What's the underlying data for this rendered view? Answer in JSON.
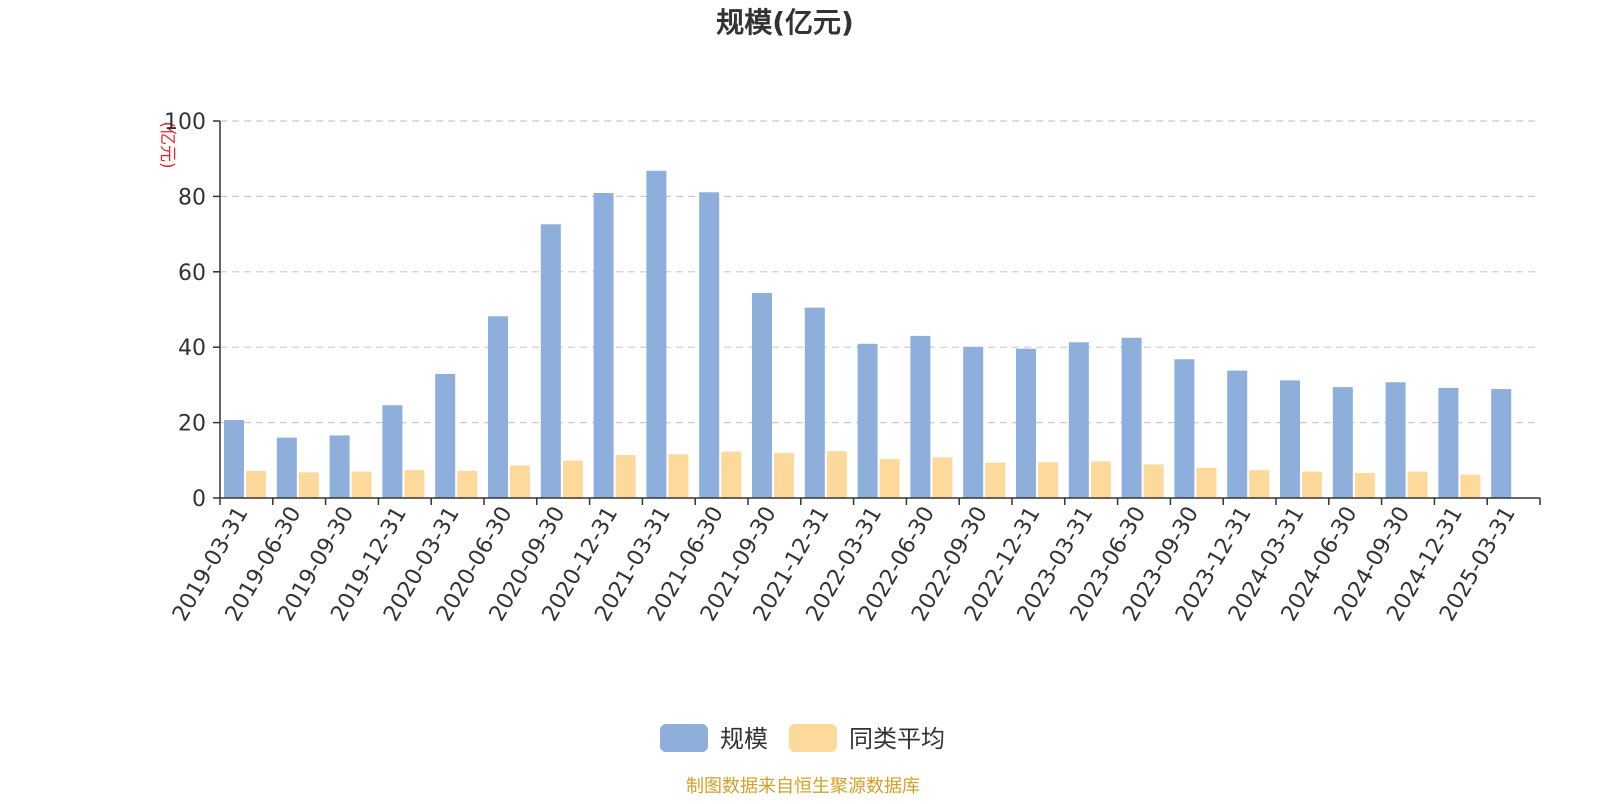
{
  "chart_data": {
    "type": "bar",
    "title": "规模(亿元)",
    "ylabel": "(亿元)",
    "xlabel": "",
    "ylim": [
      0,
      100
    ],
    "yticks": [
      0,
      20,
      40,
      60,
      80,
      100
    ],
    "grid": true,
    "legend_position": "bottom-center",
    "categories": [
      "2019-03-31",
      "2019-06-30",
      "2019-09-30",
      "2019-12-31",
      "2020-03-31",
      "2020-06-30",
      "2020-09-30",
      "2020-12-31",
      "2021-03-31",
      "2021-06-30",
      "2021-09-30",
      "2021-12-31",
      "2022-03-31",
      "2022-06-30",
      "2022-09-30",
      "2022-12-31",
      "2023-03-31",
      "2023-06-30",
      "2023-09-30",
      "2023-12-31",
      "2024-03-31",
      "2024-06-30",
      "2024-09-30",
      "2024-12-31",
      "2025-03-31"
    ],
    "series": [
      {
        "name": "规模",
        "color": "#8eaedb",
        "values": [
          20.7,
          16.0,
          16.6,
          24.6,
          32.9,
          48.2,
          72.6,
          80.9,
          86.8,
          81.1,
          54.4,
          50.5,
          40.9,
          43.0,
          40.1,
          39.6,
          41.3,
          42.5,
          36.8,
          33.8,
          31.2,
          29.4,
          30.7,
          29.2,
          28.9
        ]
      },
      {
        "name": "同类平均",
        "color": "#fdd99b",
        "values": [
          7.2,
          6.8,
          7.0,
          7.4,
          7.2,
          8.6,
          9.9,
          11.4,
          11.6,
          12.3,
          11.9,
          12.4,
          10.3,
          10.8,
          9.4,
          9.5,
          9.7,
          8.9,
          8.0,
          7.4,
          7.0,
          6.6,
          7.0,
          6.2,
          null
        ]
      }
    ]
  },
  "footer": {
    "source": "制图数据来自恒生聚源数据库"
  },
  "colors": {
    "axis": "#333333",
    "grid": "#cccccc",
    "ylabel": "#e8252a",
    "source": "#d4a02a",
    "title": "#333333"
  }
}
